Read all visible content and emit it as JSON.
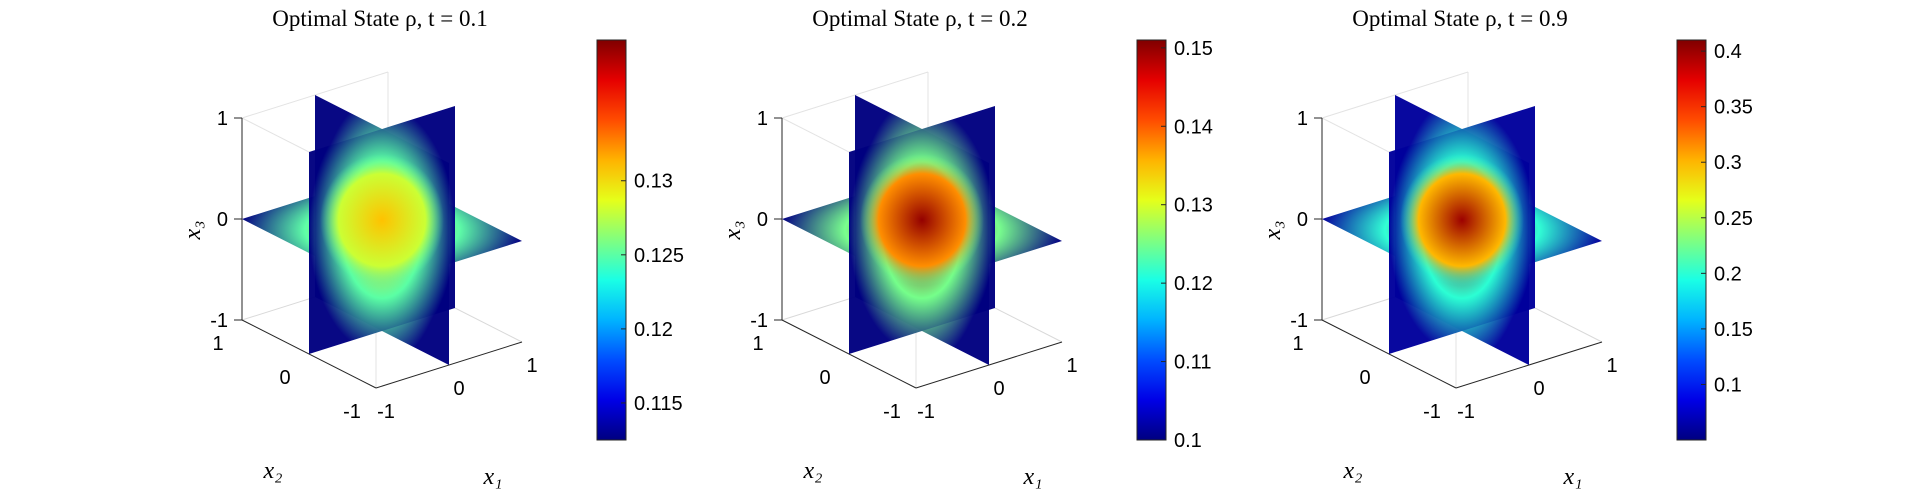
{
  "chart_data": [
    {
      "type": "heatmap",
      "title": "Optimal State ρ, t = 0.1",
      "xlabel": "x₁",
      "ylabel": "x₂",
      "zlabel": "x₃",
      "x_ticks": [
        "-1",
        "0",
        "1"
      ],
      "y_ticks": [
        "-1",
        "0",
        "1"
      ],
      "z_ticks": [
        "-1",
        "0",
        "1"
      ],
      "xlim": [
        -1,
        1
      ],
      "ylim": [
        -1,
        1
      ],
      "zlim": [
        -1,
        1
      ],
      "colorbar": {
        "colormap": "jet",
        "min": 0.1125,
        "max": 0.1395,
        "ticks": [
          0.115,
          0.12,
          0.125,
          0.13
        ],
        "tick_labels": [
          "0.115",
          "0.12",
          "0.125",
          "0.13"
        ]
      },
      "value_center": 0.131,
      "value_mid": 0.125,
      "value_edge": 0.1125
    },
    {
      "type": "heatmap",
      "title": "Optimal State ρ, t = 0.2",
      "xlabel": "x₁",
      "ylabel": "x₂",
      "zlabel": "x₃",
      "x_ticks": [
        "-1",
        "0",
        "1"
      ],
      "y_ticks": [
        "-1",
        "0",
        "1"
      ],
      "z_ticks": [
        "-1",
        "0",
        "1"
      ],
      "xlim": [
        -1,
        1
      ],
      "ylim": [
        -1,
        1
      ],
      "zlim": [
        -1,
        1
      ],
      "colorbar": {
        "colormap": "jet",
        "min": 0.1,
        "max": 0.151,
        "ticks": [
          0.1,
          0.11,
          0.12,
          0.13,
          0.14,
          0.15
        ],
        "tick_labels": [
          "0.1",
          "0.11",
          "0.12",
          "0.13",
          "0.14",
          "0.15"
        ]
      },
      "value_center": 0.15,
      "value_mid": 0.125,
      "value_edge": 0.1
    },
    {
      "type": "heatmap",
      "title": "Optimal State ρ, t = 0.9",
      "xlabel": "x₁",
      "ylabel": "x₂",
      "zlabel": "x₃",
      "x_ticks": [
        "-1",
        "0",
        "1"
      ],
      "y_ticks": [
        "-1",
        "0",
        "1"
      ],
      "z_ticks": [
        "-1",
        "0",
        "1"
      ],
      "xlim": [
        -1,
        1
      ],
      "ylim": [
        -1,
        1
      ],
      "zlim": [
        -1,
        1
      ],
      "colorbar": {
        "colormap": "jet",
        "min": 0.05,
        "max": 0.41,
        "ticks": [
          0.1,
          0.15,
          0.2,
          0.25,
          0.3,
          0.35,
          0.4
        ],
        "tick_labels": [
          "0.1",
          "0.15",
          "0.2",
          "0.25",
          "0.3",
          "0.35",
          "0.4"
        ]
      },
      "value_center": 0.4,
      "value_mid": 0.2,
      "value_edge": 0.06
    }
  ]
}
